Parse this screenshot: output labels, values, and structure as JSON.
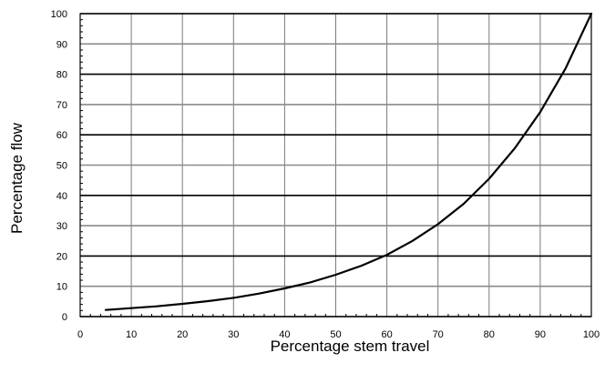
{
  "chart_data": {
    "type": "line",
    "title": "",
    "xlabel": "Percentage stem travel",
    "ylabel": "Percentage flow",
    "xlim": [
      0,
      100
    ],
    "ylim": [
      0,
      100
    ],
    "x_ticks": [
      "0",
      "10",
      "20",
      "30",
      "40",
      "50",
      "60",
      "70",
      "80",
      "90",
      "100"
    ],
    "y_ticks": [
      "0",
      "10",
      "20",
      "30",
      "40",
      "50",
      "60",
      "70",
      "80",
      "90",
      "100"
    ],
    "grid": true,
    "series": [
      {
        "x": [
          5,
          10,
          15,
          20,
          25,
          30,
          35,
          40,
          45,
          50,
          55,
          60,
          65,
          70,
          75,
          80,
          85,
          90,
          95,
          100
        ],
        "y": [
          2.2,
          2.8,
          3.4,
          4.2,
          5.1,
          6.2,
          7.6,
          9.3,
          11.3,
          13.8,
          16.8,
          20.4,
          25,
          30.5,
          37.2,
          45.5,
          55.5,
          67.5,
          82,
          100
        ]
      }
    ]
  }
}
